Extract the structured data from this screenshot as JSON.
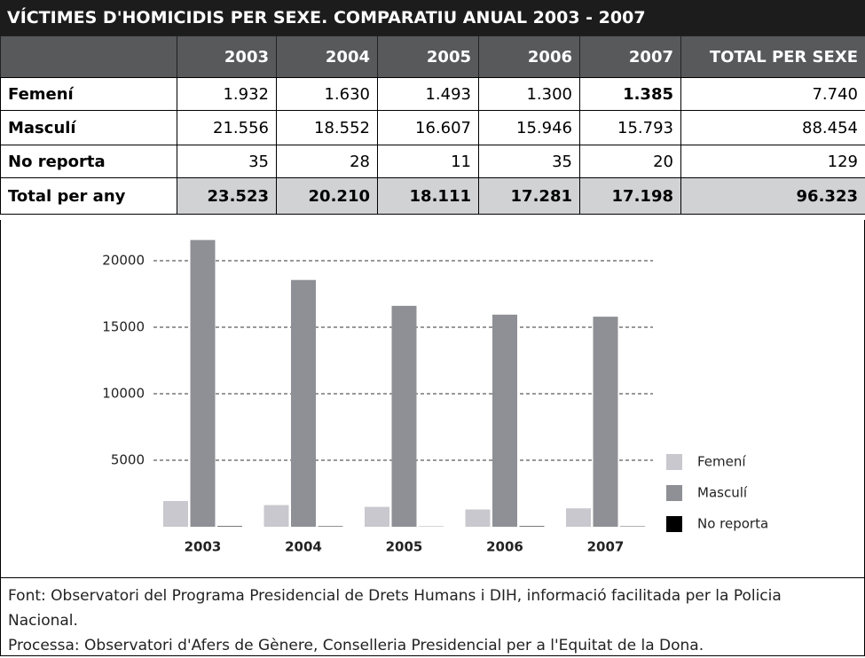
{
  "title": "VÍCTIMES D'HOMICIDIS PER SEXE. COMPARATIU ANUAL 2003 - 2007",
  "table": {
    "header": [
      "2003",
      "2004",
      "2005",
      "2006",
      "2007",
      "TOTAL PER SEXE"
    ],
    "rows": [
      [
        "Femení",
        "1.932",
        "1.630",
        "1.493",
        "1.300",
        "1.385",
        "7.740"
      ],
      [
        "Masculí",
        "21.556",
        "18.552",
        "16.607",
        "15.946",
        "15.793",
        "88.454"
      ],
      [
        "No reporta",
        "35",
        "28",
        "11",
        "35",
        "20",
        "129"
      ],
      [
        "Total per any",
        "23.523",
        "20.210",
        "18.111",
        "17.281",
        "17.198",
        "96.323"
      ]
    ]
  },
  "chart_data": {
    "type": "bar",
    "categories": [
      "2003",
      "2004",
      "2005",
      "2006",
      "2007"
    ],
    "series": [
      {
        "name": "Femení",
        "color": "#c8c8ce",
        "values": [
          1932,
          1630,
          1493,
          1300,
          1385
        ]
      },
      {
        "name": "Masculí",
        "color": "#8e9095",
        "values": [
          21556,
          18552,
          16607,
          15946,
          15793
        ]
      },
      {
        "name": "No reporta",
        "color": "#000000",
        "values": [
          35,
          28,
          11,
          35,
          20
        ]
      }
    ],
    "ylim": [
      0,
      22000
    ],
    "yticks": [
      5000,
      10000,
      15000,
      20000
    ],
    "grid": true,
    "legend": "right"
  },
  "notes": [
    "Font: Observatori del Programa Presidencial de Drets Humans i DIH, informació facilitada per la Policia Nacional.",
    "Processa: Observatori d'Afers de Gènere, Conselleria Presidencial per a l'Equitat de la Dona."
  ]
}
